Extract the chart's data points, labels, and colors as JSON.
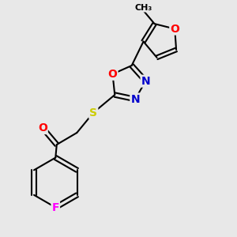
{
  "bg_color": "#e8e8e8",
  "bond_color": "#000000",
  "atom_colors": {
    "O": "#ff0000",
    "N": "#0000cc",
    "S": "#cccc00",
    "F": "#ff00ff",
    "C": "#000000"
  },
  "bond_width": 1.5,
  "font_size_atom": 10,
  "font_size_methyl": 8
}
